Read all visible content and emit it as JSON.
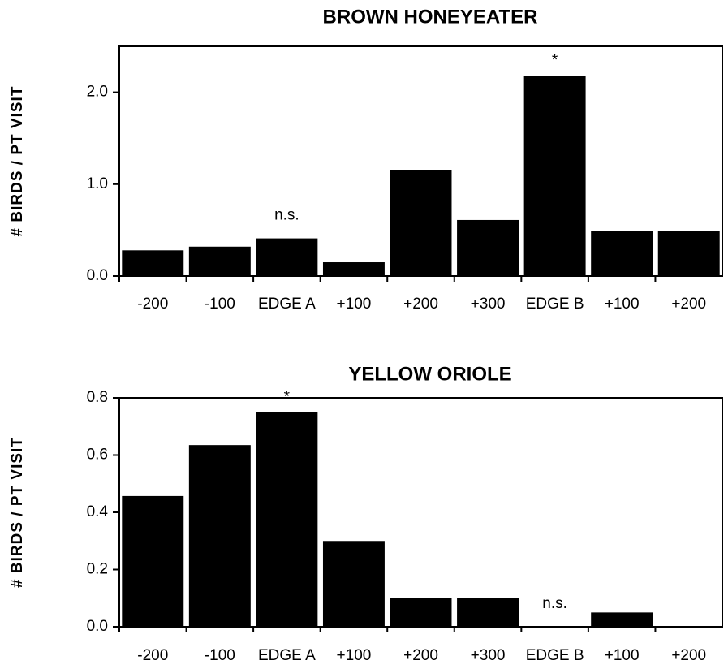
{
  "chart_data": [
    {
      "type": "bar",
      "title": "BROWN HONEYEATER",
      "y_label": "# BIRDS / PT VISIT",
      "categories": [
        "-200",
        "-100",
        "EDGE A",
        "+100",
        "+200",
        "+300",
        "EDGE B",
        "+100",
        "+200"
      ],
      "values": [
        0.28,
        0.32,
        0.41,
        0.15,
        1.15,
        0.61,
        2.18,
        0.49,
        0.49
      ],
      "color": "#000000",
      "ylim": [
        0,
        2.5
      ],
      "yticks": [
        {
          "value": 0,
          "label": "0.0"
        },
        {
          "value": 1,
          "label": "1.0"
        },
        {
          "value": 2,
          "label": "2.0"
        }
      ],
      "annotations": [
        {
          "text": "n.s.",
          "category": "EDGE A"
        },
        {
          "text": "*",
          "category": "EDGE B"
        }
      ]
    },
    {
      "type": "bar",
      "title": "YELLOW ORIOLE",
      "y_label": "# BIRDS / PT VISIT",
      "categories": [
        "-200",
        "-100",
        "EDGE A",
        "+100",
        "+200",
        "+300",
        "EDGE B",
        "+100",
        "+200"
      ],
      "values": [
        0.457,
        0.635,
        0.75,
        0.3,
        0.1,
        0.1,
        0,
        0.05,
        0
      ],
      "color": "#000000",
      "ylim": [
        0,
        0.8
      ],
      "yticks": [
        {
          "value": 0,
          "label": "0.0"
        },
        {
          "value": 0.2,
          "label": "0.2"
        },
        {
          "value": 0.4,
          "label": "0.4"
        },
        {
          "value": 0.6,
          "label": "0.6"
        },
        {
          "value": 0.8,
          "label": "0.8"
        }
      ],
      "annotations": [
        {
          "text": "*",
          "category": "EDGE A"
        },
        {
          "text": "n.s.",
          "category": "EDGE B"
        }
      ]
    }
  ]
}
